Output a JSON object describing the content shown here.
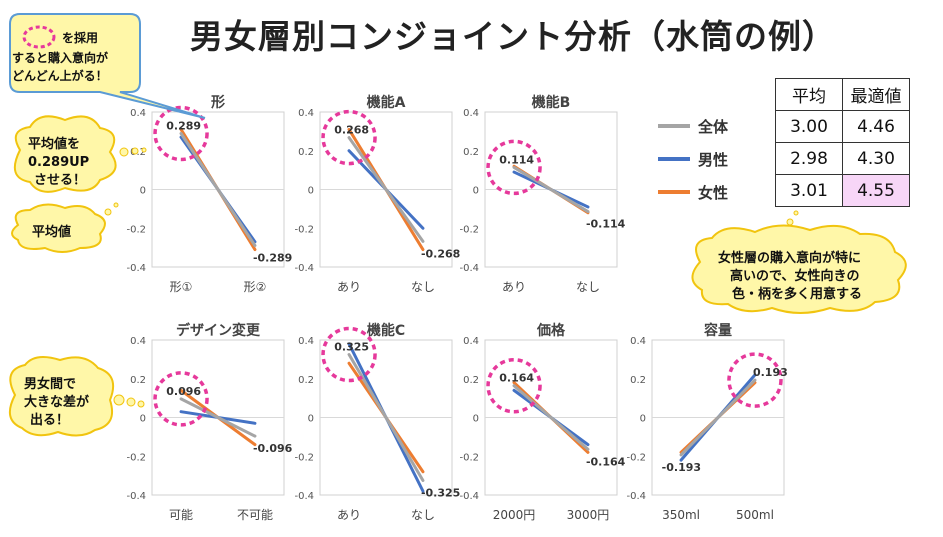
{
  "title": "男女層別コンジョイント分析（水筒の例）",
  "legend": [
    {
      "name": "全体",
      "color": "#a5a5a5"
    },
    {
      "name": "男性",
      "color": "#4472c4"
    },
    {
      "name": "女性",
      "color": "#ed7d31"
    }
  ],
  "table": {
    "headers": [
      "平均",
      "最適値"
    ],
    "rows": [
      [
        "3.00",
        "4.46"
      ],
      [
        "2.98",
        "4.30"
      ],
      [
        "3.01",
        "4.55"
      ]
    ],
    "highlight_color": "#f7d6f7"
  },
  "callouts": {
    "adopt": [
      "を採用",
      "すると購入意向が",
      "どんどん上がる！"
    ],
    "avg_up": [
      "平均値を",
      "0.289UP",
      "させる！"
    ],
    "avg": "平均値",
    "gender_gap": [
      "男女間で",
      "大きな差が",
      "出る！"
    ],
    "female": [
      "女性層の購入意向が特に",
      "高いので、女性向きの",
      "色・柄を多く用意する"
    ]
  },
  "chart_data": [
    {
      "type": "line",
      "title": "形",
      "categories": [
        "形①",
        "形②"
      ],
      "ylim": [
        -0.4,
        0.4
      ],
      "yticks": [
        "0.4",
        "0.2",
        "0",
        "-0.2",
        "-0.4"
      ],
      "series": [
        {
          "name": "全体",
          "values": [
            0.289,
            -0.289
          ]
        },
        {
          "name": "男性",
          "values": [
            0.27,
            -0.27
          ]
        },
        {
          "name": "女性",
          "values": [
            0.31,
            -0.31
          ]
        }
      ],
      "labels": [
        "0.289",
        "-0.289"
      ]
    },
    {
      "type": "line",
      "title": "機能A",
      "categories": [
        "あり",
        "なし"
      ],
      "ylim": [
        -0.4,
        0.4
      ],
      "yticks": [
        "0.4",
        "0.2",
        "0",
        "-0.2",
        "-0.4"
      ],
      "series": [
        {
          "name": "全体",
          "values": [
            0.268,
            -0.268
          ]
        },
        {
          "name": "男性",
          "values": [
            0.2,
            -0.2
          ]
        },
        {
          "name": "女性",
          "values": [
            0.31,
            -0.31
          ]
        }
      ],
      "labels": [
        "0.268",
        "-0.268"
      ]
    },
    {
      "type": "line",
      "title": "機能B",
      "categories": [
        "あり",
        "なし"
      ],
      "ylim": [
        -0.4,
        0.4
      ],
      "yticks": [
        "0.4",
        "0.2",
        "0",
        "-0.2",
        "-0.4"
      ],
      "series": [
        {
          "name": "全体",
          "values": [
            0.114,
            -0.114
          ]
        },
        {
          "name": "男性",
          "values": [
            0.09,
            -0.09
          ]
        },
        {
          "name": "女性",
          "values": [
            0.12,
            -0.12
          ]
        }
      ],
      "labels": [
        "0.114",
        "-0.114"
      ]
    },
    {
      "type": "line",
      "title": "デザイン変更",
      "categories": [
        "可能",
        "不可能"
      ],
      "ylim": [
        -0.4,
        0.4
      ],
      "yticks": [
        "0.4",
        "0.2",
        "0",
        "-0.2",
        "-0.4"
      ],
      "series": [
        {
          "name": "全体",
          "values": [
            0.096,
            -0.096
          ]
        },
        {
          "name": "男性",
          "values": [
            0.03,
            -0.03
          ]
        },
        {
          "name": "女性",
          "values": [
            0.14,
            -0.14
          ]
        }
      ],
      "labels": [
        "0.096",
        "-0.096"
      ]
    },
    {
      "type": "line",
      "title": "機能C",
      "categories": [
        "あり",
        "なし"
      ],
      "ylim": [
        -0.4,
        0.4
      ],
      "yticks": [
        "0.4",
        "0.2",
        "0",
        "-0.2",
        "-0.4"
      ],
      "series": [
        {
          "name": "全体",
          "values": [
            0.325,
            -0.325
          ]
        },
        {
          "name": "男性",
          "values": [
            0.38,
            -0.38
          ]
        },
        {
          "name": "女性",
          "values": [
            0.28,
            -0.28
          ]
        }
      ],
      "labels": [
        "0.325",
        "-0.325"
      ]
    },
    {
      "type": "line",
      "title": "価格",
      "categories": [
        "2000円",
        "3000円"
      ],
      "ylim": [
        -0.4,
        0.4
      ],
      "yticks": [
        "0.4",
        "0.2",
        "0",
        "-0.2",
        "-0.4"
      ],
      "series": [
        {
          "name": "全体",
          "values": [
            0.164,
            -0.164
          ]
        },
        {
          "name": "男性",
          "values": [
            0.14,
            -0.14
          ]
        },
        {
          "name": "女性",
          "values": [
            0.18,
            -0.18
          ]
        }
      ],
      "labels": [
        "0.164",
        "-0.164"
      ]
    },
    {
      "type": "line",
      "title": "容量",
      "categories": [
        "350ml",
        "500ml"
      ],
      "ylim": [
        -0.4,
        0.4
      ],
      "yticks": [
        "0.4",
        "0.2",
        "0",
        "-0.2",
        "-0.4"
      ],
      "series": [
        {
          "name": "全体",
          "values": [
            -0.193,
            0.193
          ]
        },
        {
          "name": "男性",
          "values": [
            -0.22,
            0.22
          ]
        },
        {
          "name": "女性",
          "values": [
            -0.18,
            0.18
          ]
        }
      ],
      "labels": [
        "-0.193",
        "0.193"
      ]
    }
  ]
}
